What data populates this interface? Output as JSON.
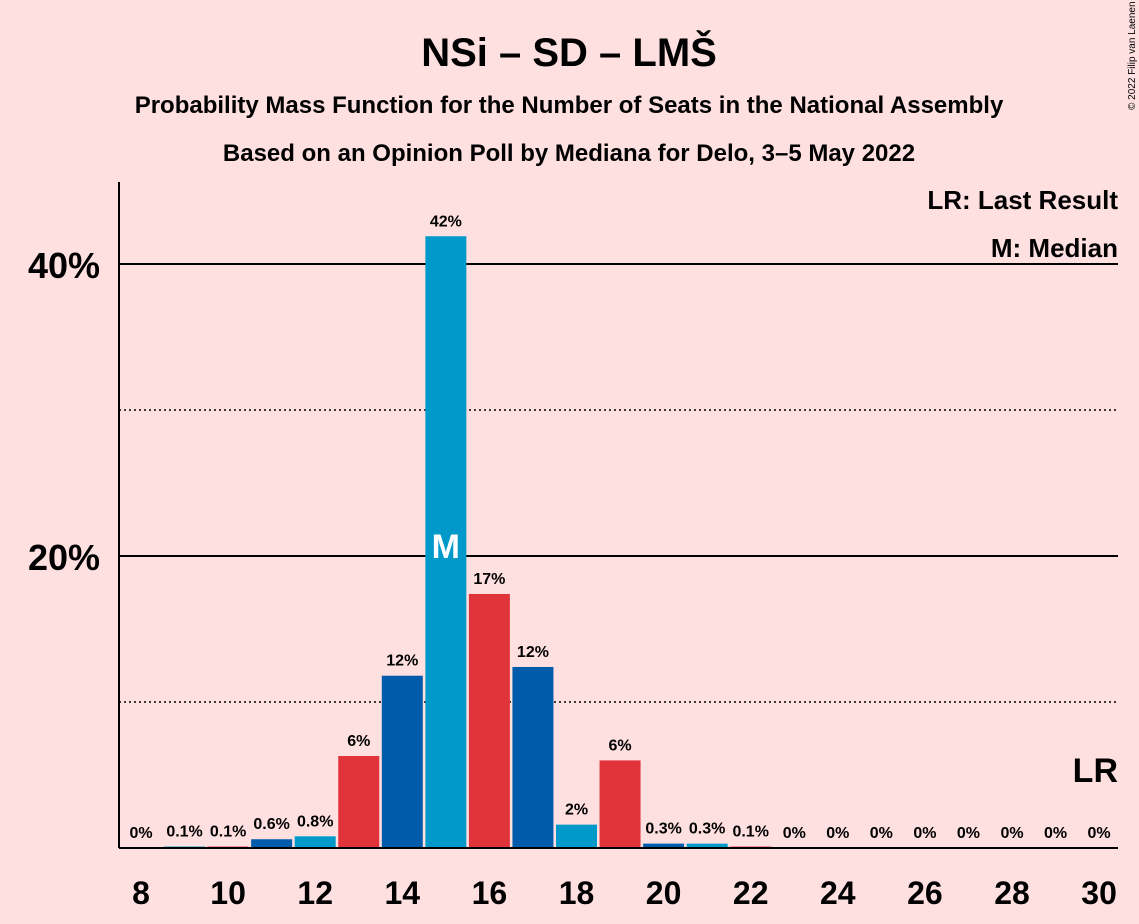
{
  "title": "NSi – SD – LMŠ",
  "subtitle1": "Probability Mass Function for the Number of Seats in the National Assembly",
  "subtitle2": "Based on an Opinion Poll by Mediana for Delo, 3–5 May 2022",
  "copyright": "© 2022 Filip van Laenen",
  "legend": {
    "last_result": "LR: Last Result",
    "median": "M: Median"
  },
  "markers": {
    "lr": "LR",
    "median": "M"
  },
  "colors": {
    "background": "#ffe0e0",
    "nsi": "#005baa",
    "sd": "#0099c9",
    "lms": "#e0343a"
  },
  "chart_data": {
    "type": "bar",
    "x": [
      8,
      9,
      10,
      11,
      12,
      13,
      14,
      15,
      16,
      17,
      18,
      19,
      20,
      21,
      22,
      23,
      24,
      25,
      26,
      27,
      28,
      29,
      30
    ],
    "values": [
      0,
      0.1,
      0.1,
      0.6,
      0.8,
      6.3,
      11.8,
      41.9,
      17.4,
      12.4,
      1.6,
      6.0,
      0.3,
      0.3,
      0.1,
      0,
      0,
      0,
      0,
      0,
      0,
      0,
      0
    ],
    "labels": [
      "0%",
      "0.1%",
      "0.1%",
      "0.6%",
      "0.8%",
      "6%",
      "12%",
      "42%",
      "17%",
      "12%",
      "2%",
      "6%",
      "0.3%",
      "0.3%",
      "0.1%",
      "0%",
      "0%",
      "0%",
      "0%",
      "0%",
      "0%",
      "0%",
      "0%"
    ],
    "bar_colors": [
      "#005baa",
      "#0099c9",
      "#e0343a",
      "#005baa",
      "#0099c9",
      "#e0343a",
      "#005baa",
      "#0099c9",
      "#e0343a",
      "#005baa",
      "#0099c9",
      "#e0343a",
      "#005baa",
      "#0099c9",
      "#e0343a",
      "#005baa",
      "#0099c9",
      "#e0343a",
      "#005baa",
      "#0099c9",
      "#e0343a",
      "#005baa",
      "#0099c9"
    ],
    "x_ticks": [
      8,
      10,
      12,
      14,
      16,
      18,
      20,
      22,
      24,
      26,
      28,
      30
    ],
    "y_ticks": [
      {
        "value": 20,
        "label": "20%",
        "style": "solid"
      },
      {
        "value": 40,
        "label": "40%",
        "style": "solid"
      }
    ],
    "y_minor_gridlines": [
      10,
      30
    ],
    "ylim": [
      0,
      45
    ],
    "median_seat": 15,
    "last_result_seat": 30
  }
}
